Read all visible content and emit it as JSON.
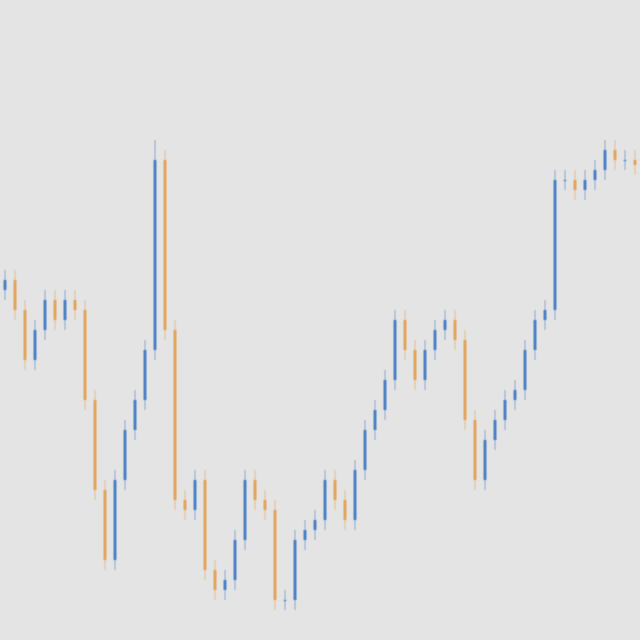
{
  "chart_data": {
    "type": "candlestick",
    "up_color": "#4a80c4",
    "down_color": "#e3a35a",
    "ylim": [
      0,
      640
    ],
    "open": [
      350,
      360,
      330,
      280,
      310,
      340,
      320,
      340,
      330,
      240,
      150,
      80,
      160,
      210,
      240,
      290,
      480,
      310,
      140,
      130,
      160,
      70,
      50,
      60,
      100,
      160,
      140,
      130,
      40,
      40,
      100,
      110,
      120,
      160,
      140,
      120,
      170,
      210,
      230,
      260,
      320,
      290,
      260,
      290,
      310,
      320,
      300,
      220,
      160,
      200,
      220,
      240,
      250,
      290,
      320,
      330,
      460,
      460,
      450,
      460,
      470,
      490,
      480,
      480
    ],
    "high": [
      370,
      370,
      340,
      320,
      350,
      350,
      350,
      350,
      340,
      250,
      160,
      170,
      220,
      250,
      300,
      500,
      490,
      320,
      150,
      170,
      170,
      80,
      70,
      110,
      170,
      170,
      150,
      140,
      50,
      110,
      120,
      130,
      170,
      170,
      150,
      180,
      220,
      240,
      270,
      330,
      330,
      300,
      300,
      320,
      330,
      330,
      310,
      230,
      210,
      230,
      250,
      260,
      300,
      330,
      340,
      470,
      470,
      470,
      470,
      480,
      500,
      500,
      490,
      490
    ],
    "low": [
      340,
      320,
      270,
      270,
      300,
      310,
      310,
      320,
      230,
      140,
      70,
      70,
      150,
      200,
      230,
      280,
      300,
      130,
      120,
      120,
      60,
      40,
      40,
      50,
      90,
      130,
      120,
      30,
      30,
      30,
      90,
      100,
      110,
      130,
      110,
      110,
      160,
      200,
      220,
      250,
      280,
      250,
      250,
      280,
      300,
      290,
      210,
      150,
      150,
      190,
      210,
      230,
      240,
      280,
      310,
      320,
      450,
      440,
      440,
      450,
      460,
      470,
      470,
      465
    ],
    "close": [
      360,
      330,
      280,
      310,
      340,
      320,
      340,
      330,
      240,
      150,
      80,
      160,
      210,
      240,
      290,
      480,
      310,
      140,
      130,
      160,
      70,
      50,
      60,
      100,
      160,
      140,
      130,
      40,
      40,
      100,
      110,
      120,
      160,
      140,
      120,
      170,
      210,
      230,
      260,
      320,
      290,
      260,
      290,
      310,
      320,
      300,
      220,
      160,
      200,
      220,
      240,
      250,
      290,
      320,
      330,
      460,
      460,
      450,
      460,
      470,
      490,
      480,
      480,
      475
    ]
  }
}
